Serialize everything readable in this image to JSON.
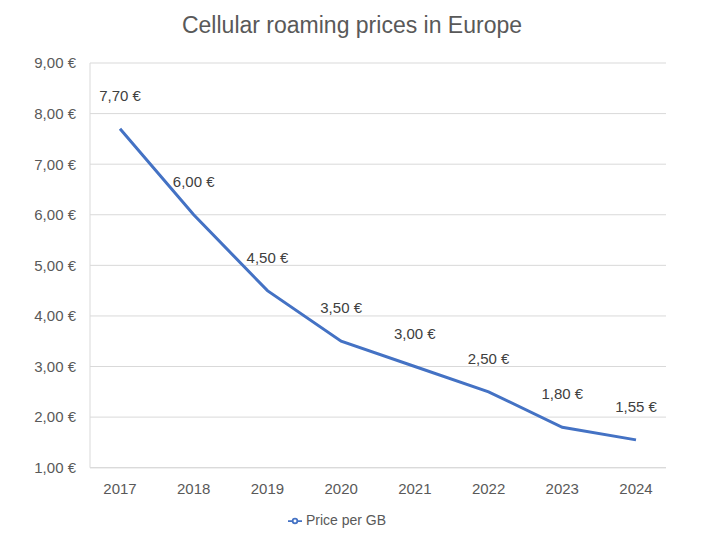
{
  "chart_data": {
    "type": "line",
    "title": "Cellular roaming prices in Europe",
    "categories": [
      "2017",
      "2018",
      "2019",
      "2020",
      "2021",
      "2022",
      "2023",
      "2024"
    ],
    "series": [
      {
        "name": "Price per GB",
        "color": "#4472c4",
        "values": [
          7.7,
          6,
          4.5,
          3.5,
          3,
          2.5,
          1.8,
          1.55
        ],
        "value_labels": [
          "7,70 €",
          "6,00 €",
          "4,50 €",
          "3,50 €",
          "3,00 €",
          "2,50 €",
          "1,80 €",
          "1,55 €"
        ]
      }
    ],
    "ylim": [
      1,
      9
    ],
    "yticks": [
      {
        "value": 1,
        "label": "1,00 €"
      },
      {
        "value": 2,
        "label": "2,00 €"
      },
      {
        "value": 3,
        "label": "3,00 €"
      },
      {
        "value": 4,
        "label": "4,00 €"
      },
      {
        "value": 5,
        "label": "5,00 €"
      },
      {
        "value": 6,
        "label": "6,00 €"
      },
      {
        "value": 7,
        "label": "7,00 €"
      },
      {
        "value": 8,
        "label": "8,00 €"
      },
      {
        "value": 9,
        "label": "9,00 €"
      }
    ],
    "grid": true,
    "data_labels": true,
    "legend": "bottom"
  }
}
